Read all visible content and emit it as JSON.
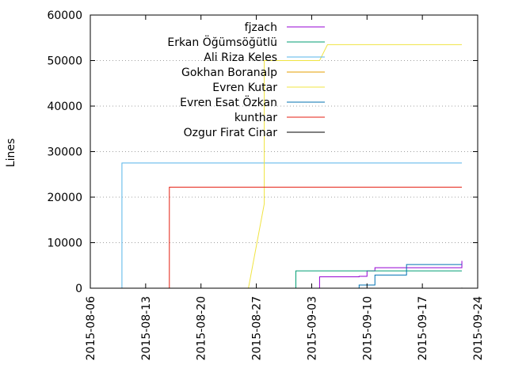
{
  "chart_data": {
    "type": "line",
    "title": "",
    "xlabel": "",
    "ylabel": "Lines",
    "x_axis_type": "date",
    "xlim": [
      "2015-08-06",
      "2015-09-24"
    ],
    "ylim": [
      0,
      60000
    ],
    "x_ticks": [
      "2015-08-06",
      "2015-08-13",
      "2015-08-20",
      "2015-08-27",
      "2015-09-03",
      "2015-09-10",
      "2015-09-17",
      "2015-09-24"
    ],
    "y_ticks": [
      "0",
      "10000",
      "20000",
      "30000",
      "40000",
      "50000",
      "60000"
    ],
    "grid": true,
    "legend_position": "top-center",
    "series": [
      {
        "name": "fjzach",
        "color": "#9400d3",
        "step": true,
        "points": [
          [
            "2015-08-15",
            0
          ],
          [
            "2015-09-04",
            300
          ],
          [
            "2015-09-04",
            2500
          ],
          [
            "2015-09-09",
            2600
          ],
          [
            "2015-09-10",
            3800
          ],
          [
            "2015-09-11",
            4500
          ],
          [
            "2015-09-22",
            4500
          ],
          [
            "2015-09-22",
            6000
          ]
        ]
      },
      {
        "name": "Erkan Öğümsöğütlü",
        "color": "#009e73",
        "step": true,
        "points": [
          [
            "2015-08-30",
            0
          ],
          [
            "2015-09-01",
            0
          ],
          [
            "2015-09-01",
            3800
          ],
          [
            "2015-09-22",
            3800
          ]
        ]
      },
      {
        "name": "Ali Riza Keles",
        "color": "#56b4e9",
        "step": true,
        "points": [
          [
            "2015-08-10",
            0
          ],
          [
            "2015-08-10",
            5500
          ],
          [
            "2015-08-10",
            27500
          ],
          [
            "2015-09-22",
            27500
          ]
        ]
      },
      {
        "name": "Gokhan Boranalp",
        "color": "#e69f00",
        "step": true,
        "points": [
          [
            "2015-08-13",
            0
          ],
          [
            "2015-08-16",
            0
          ]
        ]
      },
      {
        "name": "Evren Kutar",
        "color": "#f0e442",
        "step": false,
        "points": [
          [
            "2015-08-26",
            0
          ],
          [
            "2015-08-28",
            18500
          ],
          [
            "2015-08-28",
            50000
          ],
          [
            "2015-09-04",
            50000
          ],
          [
            "2015-09-05",
            53500
          ],
          [
            "2015-09-22",
            53500
          ]
        ]
      },
      {
        "name": "Evren Esat Özkan",
        "color": "#0072b2",
        "step": true,
        "points": [
          [
            "2015-08-30",
            0
          ],
          [
            "2015-09-09",
            0
          ],
          [
            "2015-09-09",
            700
          ],
          [
            "2015-09-11",
            700
          ],
          [
            "2015-09-11",
            2900
          ],
          [
            "2015-09-15",
            2900
          ],
          [
            "2015-09-15",
            5200
          ],
          [
            "2015-09-22",
            5200
          ]
        ]
      },
      {
        "name": "kunthar",
        "color": "#e51e10",
        "step": true,
        "points": [
          [
            "2015-08-13",
            0
          ],
          [
            "2015-08-16",
            0
          ],
          [
            "2015-08-16",
            22200
          ],
          [
            "2015-09-22",
            22200
          ]
        ]
      },
      {
        "name": "Ozgur Firat Cinar",
        "color": "#000000",
        "step": true,
        "points": [
          [
            "2015-08-18",
            0
          ],
          [
            "2015-09-22",
            100
          ]
        ]
      }
    ]
  }
}
